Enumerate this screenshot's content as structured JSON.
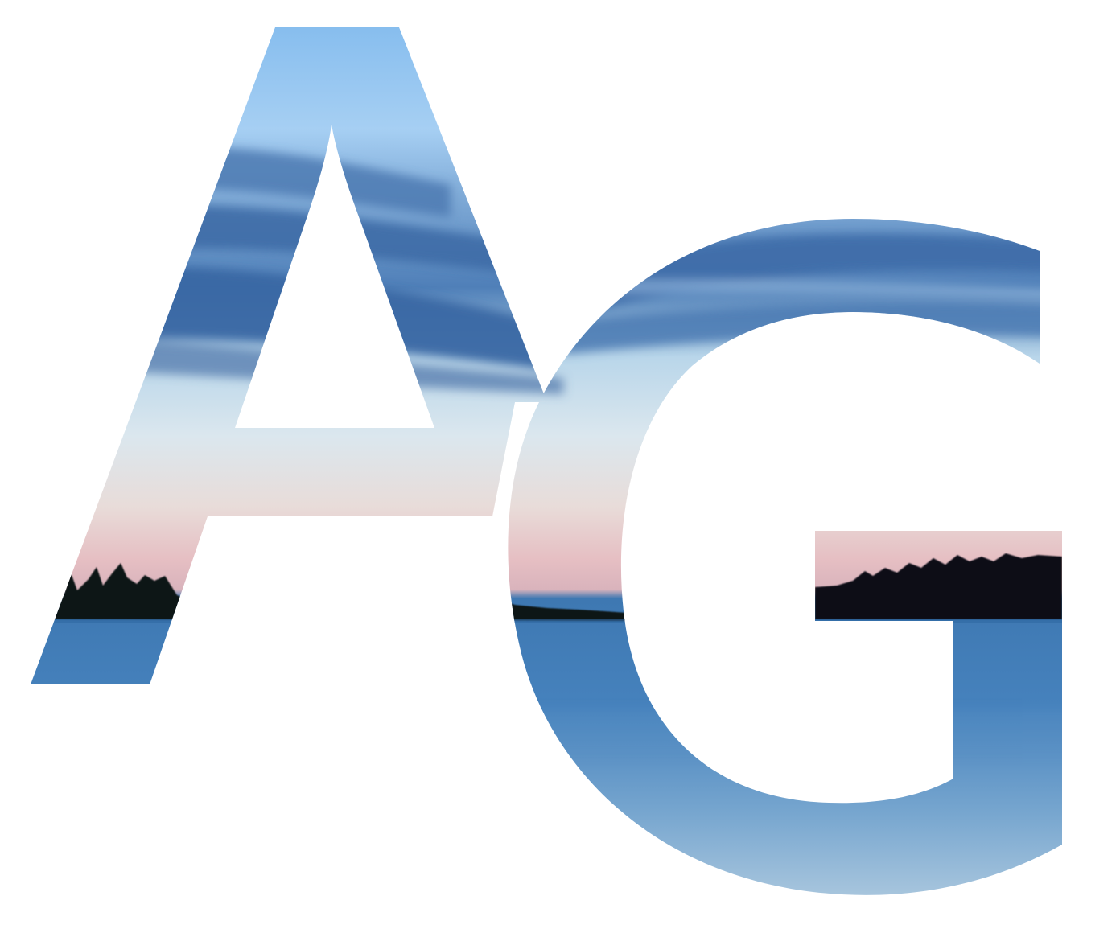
{
  "artwork": {
    "letters": [
      "A",
      "G"
    ],
    "palette": {
      "sky_top": "#8fc2ef",
      "sky_light": "#a9d1f2",
      "cloud_dark": "#3d6aa3",
      "cloud_mid": "#5a86bd",
      "horizon_pale": "#dfe8ee",
      "horizon_pink": "#e6c2c4",
      "treeline": "#0d1016",
      "water_deep": "#3f7bb6",
      "water_light": "#a9c6dc",
      "background": "#ffffff"
    }
  }
}
